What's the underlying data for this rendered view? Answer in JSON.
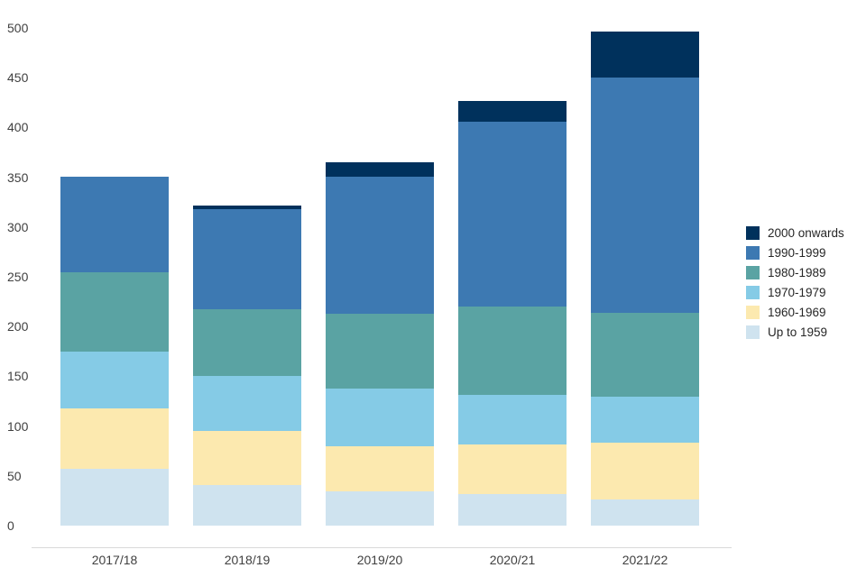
{
  "chart_data": {
    "type": "bar",
    "stacked": true,
    "title": "",
    "xlabel": "",
    "ylabel": "",
    "categories": [
      "2017/18",
      "2018/19",
      "2019/20",
      "2020/21",
      "2021/22"
    ],
    "series": [
      {
        "name": "Up to 1959",
        "color": "#cfe3ef",
        "values": [
          57,
          41,
          34,
          32,
          26
        ]
      },
      {
        "name": "1960-1969",
        "color": "#fce9af",
        "values": [
          61,
          54,
          46,
          50,
          57
        ]
      },
      {
        "name": "1970-1979",
        "color": "#85cbe6",
        "values": [
          57,
          55,
          58,
          49,
          47
        ]
      },
      {
        "name": "1980-1989",
        "color": "#5aa3a3",
        "values": [
          80,
          67,
          75,
          89,
          84
        ]
      },
      {
        "name": "1990-1999",
        "color": "#3d79b2",
        "values": [
          96,
          101,
          138,
          186,
          236
        ]
      },
      {
        "name": "2000 onwards",
        "color": "#00315c",
        "values": [
          0,
          4,
          14,
          21,
          46
        ]
      }
    ],
    "ylim": [
      0,
      500
    ],
    "yticks": [
      0,
      50,
      100,
      150,
      200,
      250,
      300,
      350,
      400,
      450,
      500
    ],
    "grid": false,
    "legend_position": "right",
    "legend_order": "top-of-stack-first"
  },
  "colors": {
    "background": "#ffffff",
    "axis_line": "#d9d9d9",
    "tick_text": "#404040",
    "legend_text": "#262626"
  }
}
